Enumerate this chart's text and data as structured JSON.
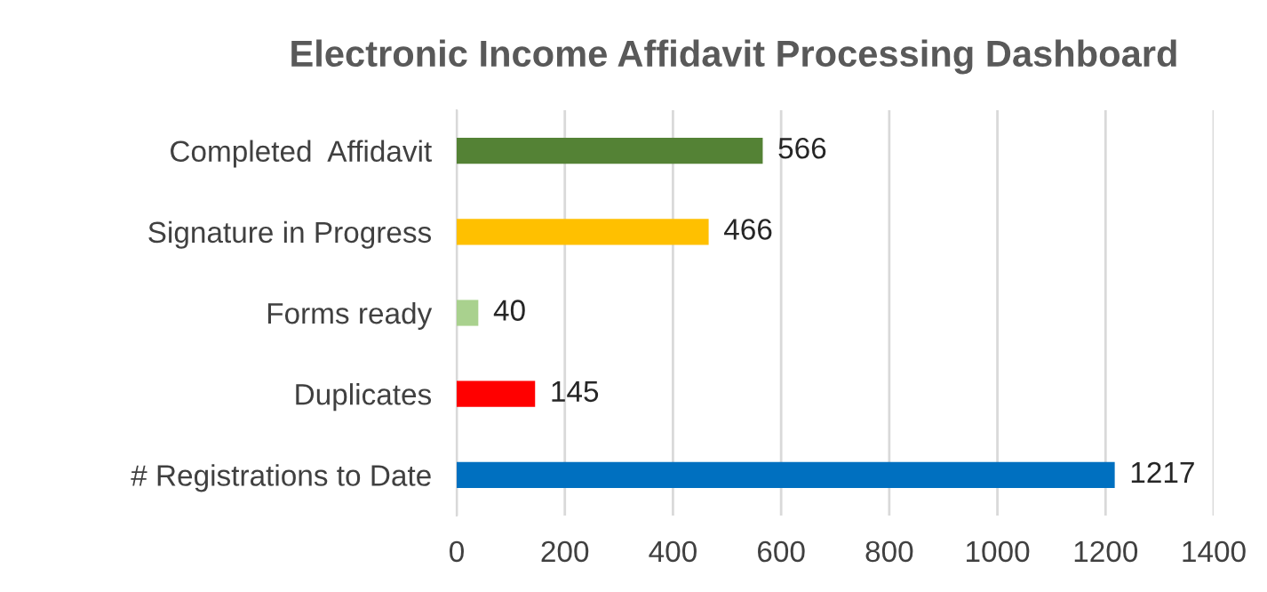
{
  "chart_data": {
    "type": "bar",
    "orientation": "horizontal",
    "title": "Electronic Income Affidavit Processing Dashboard",
    "categories": [
      "Completed  Affidavit",
      "Signature in Progress",
      "Forms ready",
      "Duplicates",
      "# Registrations to Date"
    ],
    "values": [
      566,
      466,
      40,
      145,
      1217
    ],
    "colors": [
      "#548235",
      "#ffc000",
      "#a9d18e",
      "#ff0000",
      "#0070c0"
    ],
    "xlim": [
      0,
      1400
    ],
    "xticks": [
      0,
      200,
      400,
      600,
      800,
      1000,
      1200,
      1400
    ],
    "grid": "x",
    "data_labels": true
  }
}
